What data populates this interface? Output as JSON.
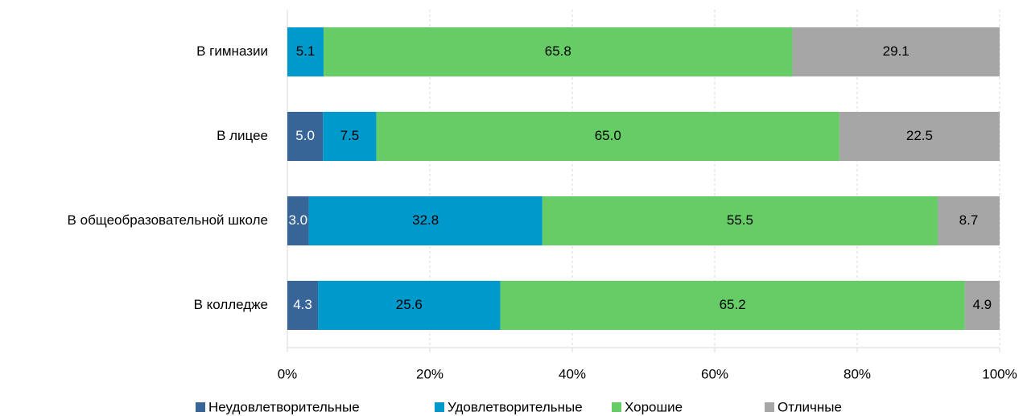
{
  "chart_data": {
    "type": "stacked_barh",
    "categories": [
      "В гимназии",
      "В лицее",
      "В общеобразовательной школе",
      "В колледже"
    ],
    "series": [
      {
        "name": "Неудовлетворительные",
        "color": "#386597",
        "values": [
          null,
          5.0,
          3.0,
          4.3
        ],
        "value_labels": [
          null,
          "5.0",
          "3.0",
          "4.3"
        ]
      },
      {
        "name": "Удовлетворительные",
        "color": "#0099cc",
        "values": [
          5.1,
          7.5,
          32.8,
          25.6
        ],
        "value_labels": [
          "5.1",
          "7.5",
          "32.8",
          "25.6"
        ]
      },
      {
        "name": "Хорошие",
        "color": "#66cc66",
        "values": [
          65.8,
          65.0,
          55.5,
          65.2
        ],
        "value_labels": [
          "65.8",
          "65.0",
          "55.5",
          "65.2"
        ]
      },
      {
        "name": "Отличные",
        "color": "#a6a6a6",
        "values": [
          29.1,
          22.5,
          8.7,
          4.9
        ],
        "value_labels": [
          "29.1",
          "22.5",
          "8.7",
          "4.9"
        ]
      }
    ],
    "xlim": [
      0,
      100
    ],
    "xticks": [
      {
        "value": 0,
        "label": "0%"
      },
      {
        "value": 20,
        "label": "20%"
      },
      {
        "value": 40,
        "label": "40%"
      },
      {
        "value": 60,
        "label": "60%"
      },
      {
        "value": 80,
        "label": "80%"
      },
      {
        "value": 100,
        "label": "100%"
      }
    ],
    "grid": true,
    "legend": "bottom"
  }
}
